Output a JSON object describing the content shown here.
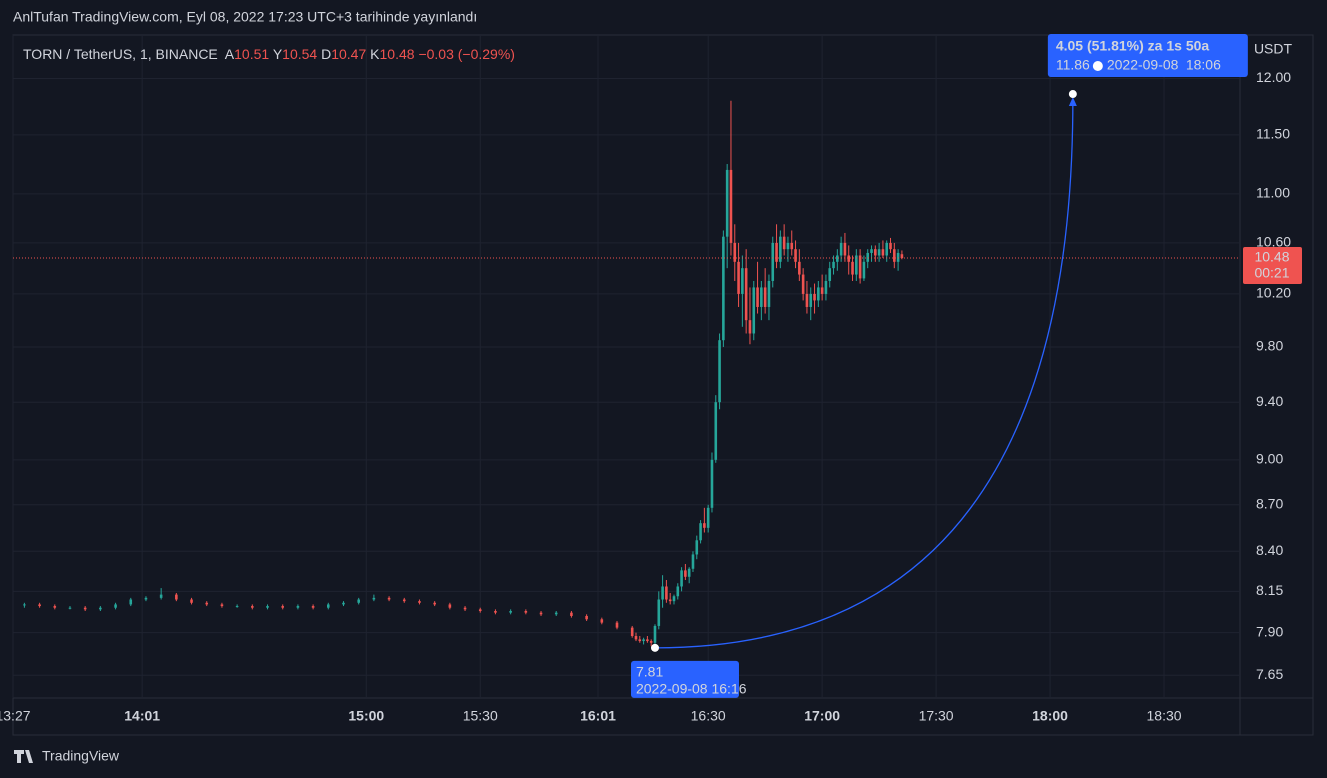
{
  "chart_data": {
    "type": "candlestick",
    "header": "AnlTufan TradingView.com, Eyl 08, 2022 17:23 UTC+3 tarihinde yayınlandı",
    "symbol": "TORN / TetherUS, 1, BINANCE",
    "ohlc_labels": [
      "A",
      "Y",
      "D",
      "K"
    ],
    "change": "−0.03 (−0.29%)",
    "axis_unit": "USDT",
    "brand": "TradingView",
    "log_scale": true,
    "grid": true,
    "up_color": "#26a69a",
    "down_color": "#ef5350",
    "ylim": [
      7.52,
      12.4
    ],
    "yticks": [
      {
        "value": 7.65,
        "label": "7.65"
      },
      {
        "value": 7.9,
        "label": "7.90"
      },
      {
        "value": 8.15,
        "label": "8.15"
      },
      {
        "value": 8.4,
        "label": "8.40"
      },
      {
        "value": 8.7,
        "label": "8.70"
      },
      {
        "value": 9,
        "label": "9.00"
      },
      {
        "value": 9.4,
        "label": "9.40"
      },
      {
        "value": 9.8,
        "label": "9.80"
      },
      {
        "value": 10.2,
        "label": "10.20"
      },
      {
        "value": 10.6,
        "label": "10.60"
      },
      {
        "value": 11,
        "label": "11.00"
      },
      {
        "value": 11.5,
        "label": "11.50"
      },
      {
        "value": 12,
        "label": "12.00"
      }
    ],
    "xlim": [
      "13:27",
      "18:50"
    ],
    "xticks": [
      "13:27",
      "14:01",
      "15:00",
      "15:30",
      "16:01",
      "16:30",
      "17:00",
      "17:30",
      "18:00",
      "18:30"
    ],
    "bold_xticks": [
      "14:01",
      "15:00",
      "16:01",
      "17:00",
      "18:00"
    ],
    "countdown": "00:21",
    "measure": {
      "color": "#2962ff",
      "label": "4.05 (51.81%) za 1s 50a",
      "from": {
        "value": 7.81,
        "time": "16:16",
        "date_label": "2022-09-08 16:16"
      },
      "to": {
        "value": 11.86,
        "time": "18:06",
        "date": "2022-09-08",
        "time_label": "18:06"
      }
    },
    "candles": [
      {
        "t": "13:30",
        "o": 8.07,
        "h": 8.08,
        "l": 8.05,
        "c": 8.07
      },
      {
        "t": "13:34",
        "o": 8.07,
        "h": 8.08,
        "l": 8.05,
        "c": 8.06
      },
      {
        "t": "13:38",
        "o": 8.06,
        "h": 8.07,
        "l": 8.04,
        "c": 8.05
      },
      {
        "t": "13:42",
        "o": 8.05,
        "h": 8.06,
        "l": 8.04,
        "c": 8.05
      },
      {
        "t": "13:46",
        "o": 8.05,
        "h": 8.06,
        "l": 8.03,
        "c": 8.04
      },
      {
        "t": "13:50",
        "o": 8.04,
        "h": 8.06,
        "l": 8.03,
        "c": 8.05
      },
      {
        "t": "13:54",
        "o": 8.05,
        "h": 8.08,
        "l": 8.04,
        "c": 8.07
      },
      {
        "t": "13:58",
        "o": 8.07,
        "h": 8.11,
        "l": 8.06,
        "c": 8.1
      },
      {
        "t": "14:02",
        "o": 8.1,
        "h": 8.12,
        "l": 8.09,
        "c": 8.11
      },
      {
        "t": "14:06",
        "o": 8.11,
        "h": 8.17,
        "l": 8.1,
        "c": 8.13
      },
      {
        "t": "14:10",
        "o": 8.13,
        "h": 8.14,
        "l": 8.09,
        "c": 8.1
      },
      {
        "t": "14:14",
        "o": 8.1,
        "h": 8.11,
        "l": 8.07,
        "c": 8.08
      },
      {
        "t": "14:18",
        "o": 8.08,
        "h": 8.09,
        "l": 8.06,
        "c": 8.07
      },
      {
        "t": "14:22",
        "o": 8.07,
        "h": 8.08,
        "l": 8.05,
        "c": 8.06
      },
      {
        "t": "14:26",
        "o": 8.06,
        "h": 8.07,
        "l": 8.05,
        "c": 8.06
      },
      {
        "t": "14:30",
        "o": 8.06,
        "h": 8.07,
        "l": 8.04,
        "c": 8.05
      },
      {
        "t": "14:34",
        "o": 8.05,
        "h": 8.07,
        "l": 8.04,
        "c": 8.06
      },
      {
        "t": "14:38",
        "o": 8.06,
        "h": 8.07,
        "l": 8.04,
        "c": 8.05
      },
      {
        "t": "14:42",
        "o": 8.05,
        "h": 8.07,
        "l": 8.04,
        "c": 8.06
      },
      {
        "t": "14:46",
        "o": 8.06,
        "h": 8.07,
        "l": 8.04,
        "c": 8.05
      },
      {
        "t": "14:50",
        "o": 8.05,
        "h": 8.08,
        "l": 8.04,
        "c": 8.07
      },
      {
        "t": "14:54",
        "o": 8.07,
        "h": 8.09,
        "l": 8.06,
        "c": 8.08
      },
      {
        "t": "14:58",
        "o": 8.08,
        "h": 8.11,
        "l": 8.07,
        "c": 8.1
      },
      {
        "t": "15:02",
        "o": 8.1,
        "h": 8.13,
        "l": 8.09,
        "c": 8.11
      },
      {
        "t": "15:06",
        "o": 8.11,
        "h": 8.12,
        "l": 8.09,
        "c": 8.1
      },
      {
        "t": "15:10",
        "o": 8.1,
        "h": 8.11,
        "l": 8.08,
        "c": 8.09
      },
      {
        "t": "15:14",
        "o": 8.09,
        "h": 8.1,
        "l": 8.07,
        "c": 8.08
      },
      {
        "t": "15:18",
        "o": 8.08,
        "h": 8.09,
        "l": 8.06,
        "c": 8.07
      },
      {
        "t": "15:22",
        "o": 8.07,
        "h": 8.08,
        "l": 8.04,
        "c": 8.05
      },
      {
        "t": "15:26",
        "o": 8.05,
        "h": 8.06,
        "l": 8.03,
        "c": 8.04
      },
      {
        "t": "15:30",
        "o": 8.04,
        "h": 8.05,
        "l": 8.02,
        "c": 8.03
      },
      {
        "t": "15:34",
        "o": 8.03,
        "h": 8.04,
        "l": 8.01,
        "c": 8.02
      },
      {
        "t": "15:38",
        "o": 8.02,
        "h": 8.04,
        "l": 8.01,
        "c": 8.03
      },
      {
        "t": "15:42",
        "o": 8.03,
        "h": 8.04,
        "l": 8.01,
        "c": 8.02
      },
      {
        "t": "15:46",
        "o": 8.02,
        "h": 8.03,
        "l": 8,
        "c": 8.01
      },
      {
        "t": "15:50",
        "o": 8.01,
        "h": 8.03,
        "l": 8,
        "c": 8.02
      },
      {
        "t": "15:54",
        "o": 8.02,
        "h": 8.03,
        "l": 7.99,
        "c": 8
      },
      {
        "t": "15:58",
        "o": 8,
        "h": 8.01,
        "l": 7.97,
        "c": 7.98
      },
      {
        "t": "16:02",
        "o": 7.98,
        "h": 7.99,
        "l": 7.95,
        "c": 7.96
      },
      {
        "t": "16:06",
        "o": 7.96,
        "h": 7.97,
        "l": 7.92,
        "c": 7.93
      },
      {
        "t": "16:10",
        "o": 7.93,
        "h": 7.94,
        "l": 7.87,
        "c": 7.88
      },
      {
        "t": "16:11",
        "o": 7.88,
        "h": 7.9,
        "l": 7.85,
        "c": 7.86
      },
      {
        "t": "16:12",
        "o": 7.86,
        "h": 7.88,
        "l": 7.84,
        "c": 7.85
      },
      {
        "t": "16:13",
        "o": 7.85,
        "h": 7.87,
        "l": 7.83,
        "c": 7.86
      },
      {
        "t": "16:14",
        "o": 7.86,
        "h": 7.88,
        "l": 7.84,
        "c": 7.85
      },
      {
        "t": "16:15",
        "o": 7.85,
        "h": 7.86,
        "l": 7.82,
        "c": 7.84
      },
      {
        "t": "16:16",
        "o": 7.84,
        "h": 7.95,
        "l": 7.81,
        "c": 7.94
      },
      {
        "t": "16:17",
        "o": 7.94,
        "h": 8.15,
        "l": 7.92,
        "c": 8.1
      },
      {
        "t": "16:18",
        "o": 8.1,
        "h": 8.25,
        "l": 8.05,
        "c": 8.18
      },
      {
        "t": "16:19",
        "o": 8.18,
        "h": 8.22,
        "l": 8.08,
        "c": 8.1
      },
      {
        "t": "16:20",
        "o": 8.1,
        "h": 8.14,
        "l": 8.07,
        "c": 8.09
      },
      {
        "t": "16:21",
        "o": 8.09,
        "h": 8.13,
        "l": 8.07,
        "c": 8.12
      },
      {
        "t": "16:22",
        "o": 8.12,
        "h": 8.2,
        "l": 8.1,
        "c": 8.18
      },
      {
        "t": "16:23",
        "o": 8.18,
        "h": 8.3,
        "l": 8.15,
        "c": 8.28
      },
      {
        "t": "16:24",
        "o": 8.28,
        "h": 8.32,
        "l": 8.22,
        "c": 8.24
      },
      {
        "t": "16:25",
        "o": 8.24,
        "h": 8.3,
        "l": 8.2,
        "c": 8.29
      },
      {
        "t": "16:26",
        "o": 8.29,
        "h": 8.4,
        "l": 8.27,
        "c": 8.38
      },
      {
        "t": "16:27",
        "o": 8.38,
        "h": 8.5,
        "l": 8.35,
        "c": 8.47
      },
      {
        "t": "16:28",
        "o": 8.47,
        "h": 8.6,
        "l": 8.45,
        "c": 8.58
      },
      {
        "t": "16:29",
        "o": 8.58,
        "h": 8.68,
        "l": 8.52,
        "c": 8.55
      },
      {
        "t": "16:30",
        "o": 8.55,
        "h": 8.7,
        "l": 8.52,
        "c": 8.68
      },
      {
        "t": "16:31",
        "o": 8.68,
        "h": 9.05,
        "l": 8.65,
        "c": 9
      },
      {
        "t": "16:32",
        "o": 9,
        "h": 9.45,
        "l": 8.98,
        "c": 9.4
      },
      {
        "t": "16:33",
        "o": 9.4,
        "h": 9.9,
        "l": 9.35,
        "c": 9.85
      },
      {
        "t": "16:34",
        "o": 9.85,
        "h": 10.7,
        "l": 9.8,
        "c": 10.65
      },
      {
        "t": "16:35",
        "o": 10.65,
        "h": 11.25,
        "l": 10.4,
        "c": 11.2
      },
      {
        "t": "16:36",
        "o": 11.2,
        "h": 11.8,
        "l": 10.5,
        "c": 10.6
      },
      {
        "t": "16:37",
        "o": 10.6,
        "h": 10.75,
        "l": 10.3,
        "c": 10.45
      },
      {
        "t": "16:38",
        "o": 10.45,
        "h": 10.6,
        "l": 10.1,
        "c": 10.2
      },
      {
        "t": "16:39",
        "o": 10.2,
        "h": 10.5,
        "l": 9.95,
        "c": 10.4
      },
      {
        "t": "16:40",
        "o": 10.4,
        "h": 10.55,
        "l": 9.9,
        "c": 10
      },
      {
        "t": "16:41",
        "o": 10,
        "h": 10.25,
        "l": 9.82,
        "c": 9.9
      },
      {
        "t": "16:42",
        "o": 9.9,
        "h": 10.3,
        "l": 9.85,
        "c": 10.25
      },
      {
        "t": "16:43",
        "o": 10.25,
        "h": 10.45,
        "l": 10.05,
        "c": 10.1
      },
      {
        "t": "16:44",
        "o": 10.1,
        "h": 10.3,
        "l": 10,
        "c": 10.25
      },
      {
        "t": "16:45",
        "o": 10.25,
        "h": 10.4,
        "l": 10.05,
        "c": 10.1
      },
      {
        "t": "16:46",
        "o": 10.1,
        "h": 10.35,
        "l": 10,
        "c": 10.3
      },
      {
        "t": "16:47",
        "o": 10.3,
        "h": 10.65,
        "l": 10.25,
        "c": 10.6
      },
      {
        "t": "16:48",
        "o": 10.6,
        "h": 10.75,
        "l": 10.4,
        "c": 10.45
      },
      {
        "t": "16:49",
        "o": 10.45,
        "h": 10.7,
        "l": 10.4,
        "c": 10.65
      },
      {
        "t": "16:50",
        "o": 10.65,
        "h": 10.75,
        "l": 10.5,
        "c": 10.55
      },
      {
        "t": "16:51",
        "o": 10.55,
        "h": 10.65,
        "l": 10.45,
        "c": 10.6
      },
      {
        "t": "16:52",
        "o": 10.6,
        "h": 10.7,
        "l": 10.5,
        "c": 10.55
      },
      {
        "t": "16:53",
        "o": 10.55,
        "h": 10.62,
        "l": 10.4,
        "c": 10.45
      },
      {
        "t": "16:54",
        "o": 10.45,
        "h": 10.55,
        "l": 10.3,
        "c": 10.35
      },
      {
        "t": "16:55",
        "o": 10.35,
        "h": 10.4,
        "l": 10.15,
        "c": 10.2
      },
      {
        "t": "16:56",
        "o": 10.2,
        "h": 10.3,
        "l": 10.05,
        "c": 10.1
      },
      {
        "t": "16:57",
        "o": 10.1,
        "h": 10.25,
        "l": 10,
        "c": 10.2
      },
      {
        "t": "16:58",
        "o": 10.2,
        "h": 10.28,
        "l": 10.05,
        "c": 10.15
      },
      {
        "t": "16:59",
        "o": 10.15,
        "h": 10.3,
        "l": 10.1,
        "c": 10.25
      },
      {
        "t": "17:00",
        "o": 10.25,
        "h": 10.35,
        "l": 10.15,
        "c": 10.2
      },
      {
        "t": "17:01",
        "o": 10.2,
        "h": 10.35,
        "l": 10.15,
        "c": 10.3
      },
      {
        "t": "17:02",
        "o": 10.3,
        "h": 10.45,
        "l": 10.25,
        "c": 10.4
      },
      {
        "t": "17:03",
        "o": 10.4,
        "h": 10.5,
        "l": 10.35,
        "c": 10.45
      },
      {
        "t": "17:04",
        "o": 10.45,
        "h": 10.55,
        "l": 10.38,
        "c": 10.5
      },
      {
        "t": "17:05",
        "o": 10.5,
        "h": 10.65,
        "l": 10.45,
        "c": 10.6
      },
      {
        "t": "17:06",
        "o": 10.6,
        "h": 10.68,
        "l": 10.45,
        "c": 10.5
      },
      {
        "t": "17:07",
        "o": 10.5,
        "h": 10.58,
        "l": 10.35,
        "c": 10.45
      },
      {
        "t": "17:08",
        "o": 10.45,
        "h": 10.5,
        "l": 10.3,
        "c": 10.35
      },
      {
        "t": "17:09",
        "o": 10.35,
        "h": 10.55,
        "l": 10.3,
        "c": 10.5
      },
      {
        "t": "17:10",
        "o": 10.5,
        "h": 10.55,
        "l": 10.28,
        "c": 10.32
      },
      {
        "t": "17:11",
        "o": 10.32,
        "h": 10.5,
        "l": 10.3,
        "c": 10.45
      },
      {
        "t": "17:12",
        "o": 10.45,
        "h": 10.55,
        "l": 10.4,
        "c": 10.52
      },
      {
        "t": "17:13",
        "o": 10.52,
        "h": 10.58,
        "l": 10.45,
        "c": 10.55
      },
      {
        "t": "17:14",
        "o": 10.55,
        "h": 10.58,
        "l": 10.45,
        "c": 10.5
      },
      {
        "t": "17:15",
        "o": 10.5,
        "h": 10.6,
        "l": 10.45,
        "c": 10.55
      },
      {
        "t": "17:16",
        "o": 10.55,
        "h": 10.62,
        "l": 10.48,
        "c": 10.5
      },
      {
        "t": "17:17",
        "o": 10.5,
        "h": 10.62,
        "l": 10.45,
        "c": 10.6
      },
      {
        "t": "17:18",
        "o": 10.6,
        "h": 10.64,
        "l": 10.52,
        "c": 10.55
      },
      {
        "t": "17:19",
        "o": 10.55,
        "h": 10.6,
        "l": 10.4,
        "c": 10.45
      },
      {
        "t": "17:20",
        "o": 10.45,
        "h": 10.55,
        "l": 10.38,
        "c": 10.52
      },
      {
        "t": "17:21",
        "o": 10.51,
        "h": 10.54,
        "l": 10.47,
        "c": 10.48
      }
    ]
  }
}
